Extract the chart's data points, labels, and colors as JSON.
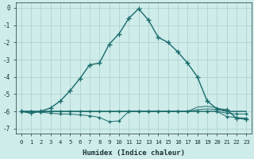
{
  "xlabel": "Humidex (Indice chaleur)",
  "ylabel": "",
  "background_color": "#ceecea",
  "grid_color": "#aed4d0",
  "line_color": "#1a6b6b",
  "xlim": [
    -0.5,
    23.5
  ],
  "ylim": [
    -7.3,
    0.3
  ],
  "xticks": [
    0,
    1,
    2,
    3,
    4,
    5,
    6,
    7,
    8,
    9,
    10,
    11,
    12,
    13,
    14,
    15,
    16,
    17,
    18,
    19,
    20,
    21,
    22,
    23
  ],
  "yticks": [
    0,
    -1,
    -2,
    -3,
    -4,
    -5,
    -6,
    -7
  ],
  "series": [
    {
      "x": [
        0,
        1,
        2,
        3,
        4,
        5,
        6,
        7,
        8,
        9,
        10,
        11,
        12,
        13,
        14,
        15,
        16,
        17,
        18,
        19,
        20,
        21,
        22,
        23
      ],
      "y": [
        -6.0,
        -6.1,
        -6.0,
        -5.8,
        -5.4,
        -4.8,
        -4.1,
        -3.3,
        -3.2,
        -2.1,
        -1.5,
        -0.6,
        -0.05,
        -0.7,
        -1.7,
        -2.0,
        -2.55,
        -3.2,
        -4.0,
        -5.4,
        -5.85,
        -5.9,
        -6.4,
        -6.45
      ],
      "marker": "+",
      "markersize": 4,
      "linewidth": 1.0,
      "zorder": 5
    },
    {
      "x": [
        0,
        1,
        2,
        3,
        4,
        5,
        6,
        7,
        8,
        9,
        10,
        11,
        12,
        13,
        14,
        15,
        16,
        17,
        18,
        19,
        20,
        21,
        22,
        23
      ],
      "y": [
        -6.0,
        -6.0,
        -6.0,
        -6.0,
        -6.0,
        -6.0,
        -6.0,
        -6.0,
        -6.0,
        -6.0,
        -6.0,
        -6.0,
        -6.0,
        -6.0,
        -6.0,
        -6.0,
        -6.0,
        -6.0,
        -5.9,
        -5.85,
        -5.9,
        -6.0,
        -6.0,
        -6.0
      ],
      "marker": null,
      "markersize": 0,
      "linewidth": 0.7,
      "zorder": 3
    },
    {
      "x": [
        0,
        1,
        2,
        3,
        4,
        5,
        6,
        7,
        8,
        9,
        10,
        11,
        12,
        13,
        14,
        15,
        16,
        17,
        18,
        19,
        20,
        21,
        22,
        23
      ],
      "y": [
        -6.0,
        -6.0,
        -6.0,
        -6.0,
        -6.0,
        -6.0,
        -6.0,
        -6.0,
        -6.0,
        -6.0,
        -6.0,
        -6.0,
        -6.0,
        -6.0,
        -6.0,
        -6.0,
        -6.0,
        -6.0,
        -5.75,
        -5.7,
        -5.8,
        -6.0,
        -6.0,
        -6.0
      ],
      "marker": null,
      "markersize": 0,
      "linewidth": 0.7,
      "zorder": 3
    },
    {
      "x": [
        0,
        1,
        2,
        3,
        4,
        5,
        6,
        7,
        8,
        9,
        10,
        11,
        12,
        13,
        14,
        15,
        16,
        17,
        18,
        19,
        20,
        21,
        22,
        23
      ],
      "y": [
        -6.0,
        -6.0,
        -6.05,
        -6.1,
        -6.15,
        -6.15,
        -6.2,
        -6.25,
        -6.35,
        -6.6,
        -6.55,
        -6.0,
        -6.0,
        -6.0,
        -6.0,
        -6.0,
        -6.0,
        -6.0,
        -6.0,
        -6.0,
        -6.0,
        -6.3,
        -6.35,
        -6.4
      ],
      "marker": "+",
      "markersize": 3.5,
      "linewidth": 0.7,
      "zorder": 4
    },
    {
      "x": [
        0,
        1,
        2,
        3,
        4,
        5,
        6,
        7,
        8,
        9,
        10,
        11,
        12,
        13,
        14,
        15,
        16,
        17,
        18,
        19,
        20,
        21,
        22,
        23
      ],
      "y": [
        -6.0,
        -6.0,
        -6.0,
        -6.0,
        -6.0,
        -6.0,
        -6.0,
        -6.0,
        -6.0,
        -6.0,
        -6.0,
        -6.0,
        -6.0,
        -6.0,
        -6.0,
        -6.0,
        -6.0,
        -6.0,
        -6.0,
        -6.0,
        -6.0,
        -6.1,
        -6.15,
        -6.15
      ],
      "marker": "+",
      "markersize": 3.5,
      "linewidth": 0.7,
      "zorder": 4
    }
  ]
}
